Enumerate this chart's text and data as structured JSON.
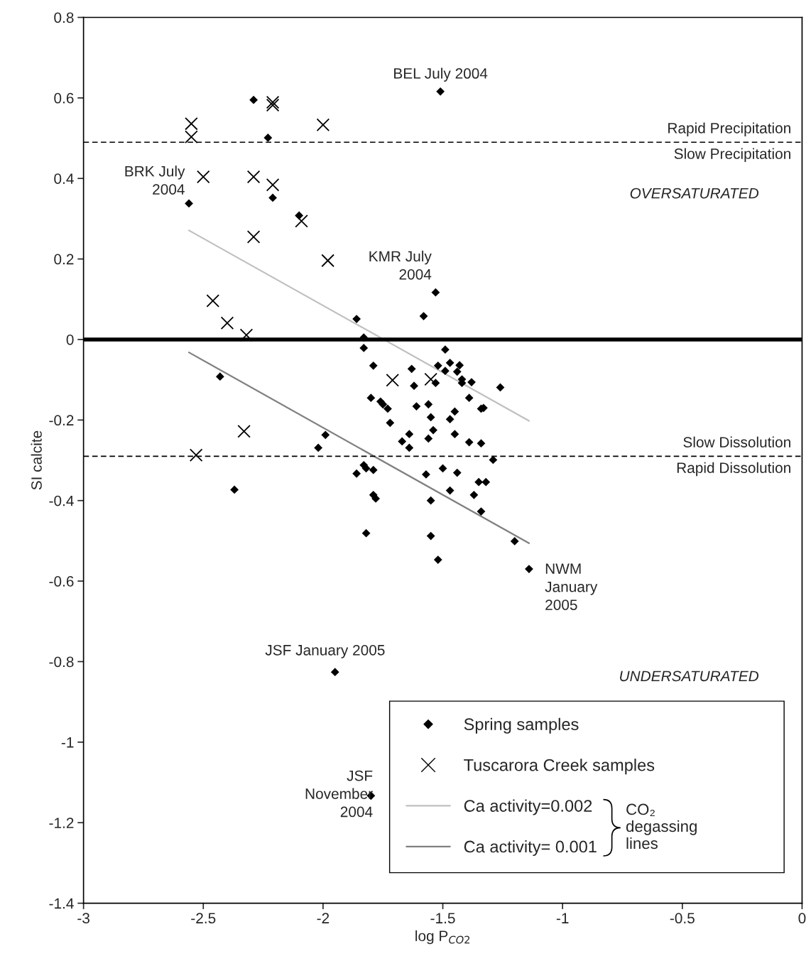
{
  "chart_data": {
    "type": "scatter",
    "xlabel": "log P$_{CO2}$",
    "ylabel": "SI calcite",
    "xlim": [
      -3,
      0
    ],
    "ylim": [
      -1.4,
      0.8
    ],
    "xticks": [
      -3,
      -2.5,
      -2,
      -1.5,
      -1,
      -0.5,
      0
    ],
    "yticks": [
      -1.4,
      -1.2,
      -1,
      -0.8,
      -0.6,
      -0.4,
      -0.2,
      0,
      0.2,
      0.4,
      0.6,
      0.8
    ],
    "grid": false,
    "legend": "bottom right",
    "legend_title": "CO₂\ndegassing\nlines",
    "series": [
      {
        "name": "Spring samples",
        "marker": "diamond",
        "color": "#000000",
        "x": [
          -1.51,
          -2.29,
          -2.23,
          -2.56,
          -2.21,
          -2.1,
          -1.53,
          -2.43,
          -2.37,
          -1.95,
          -1.8,
          -1.14,
          -1.86,
          -1.58,
          -1.83,
          -1.83,
          -1.49,
          -1.79,
          -1.63,
          -1.52,
          -1.47,
          -1.43,
          -1.49,
          -1.44,
          -1.62,
          -1.53,
          -1.42,
          -1.42,
          -1.38,
          -1.26,
          -1.8,
          -1.76,
          -1.75,
          -1.73,
          -1.61,
          -1.56,
          -1.39,
          -1.45,
          -1.55,
          -1.47,
          -1.34,
          -1.33,
          -1.72,
          -1.99,
          -1.64,
          -1.54,
          -1.56,
          -1.67,
          -2.02,
          -1.64,
          -1.45,
          -1.39,
          -1.34,
          -1.29,
          -1.83,
          -1.82,
          -1.86,
          -1.79,
          -1.57,
          -1.5,
          -1.44,
          -1.35,
          -1.32,
          -1.47,
          -1.37,
          -1.79,
          -1.78,
          -1.55,
          -1.34,
          -1.82,
          -1.55,
          -1.2,
          -1.52
        ],
        "values": [
          0.616,
          0.595,
          0.501,
          0.338,
          0.352,
          0.308,
          0.117,
          -0.092,
          -0.373,
          -0.826,
          -1.133,
          -0.57,
          0.051,
          0.058,
          0.005,
          -0.021,
          -0.025,
          -0.065,
          -0.073,
          -0.065,
          -0.058,
          -0.064,
          -0.078,
          -0.08,
          -0.115,
          -0.108,
          -0.099,
          -0.108,
          -0.106,
          -0.119,
          -0.145,
          -0.154,
          -0.161,
          -0.172,
          -0.166,
          -0.161,
          -0.145,
          -0.179,
          -0.193,
          -0.198,
          -0.172,
          -0.17,
          -0.207,
          -0.237,
          -0.235,
          -0.225,
          -0.246,
          -0.253,
          -0.269,
          -0.269,
          -0.235,
          -0.255,
          -0.258,
          -0.299,
          -0.312,
          -0.32,
          -0.333,
          -0.324,
          -0.335,
          -0.32,
          -0.331,
          -0.354,
          -0.354,
          -0.375,
          -0.386,
          -0.386,
          -0.395,
          -0.4,
          -0.427,
          -0.481,
          -0.488,
          -0.501,
          -0.547
        ]
      },
      {
        "name": "Tuscarora Creek samples",
        "marker": "cross",
        "color": "#000000",
        "x": [
          -2.55,
          -2.55,
          -2.21,
          -2.21,
          -2.0,
          -2.5,
          -2.29,
          -2.21,
          -2.09,
          -2.29,
          -1.98,
          -2.46,
          -2.4,
          -2.32,
          -1.71,
          -1.55,
          -2.33,
          -2.53
        ],
        "values": [
          0.536,
          0.503,
          0.589,
          0.582,
          0.533,
          0.404,
          0.404,
          0.384,
          0.294,
          0.255,
          0.196,
          0.096,
          0.041,
          0.011,
          -0.101,
          -0.099,
          -0.228,
          -0.287
        ]
      },
      {
        "name": "Ca activity=0.002",
        "type": "line",
        "marker": "none",
        "line_style": "solid",
        "color": "#c0c0c0",
        "x": [
          -2.56,
          -1.14
        ],
        "values": [
          0.271,
          -0.202
        ]
      },
      {
        "name": "Ca activity= 0.001",
        "type": "line",
        "marker": "none",
        "line_style": "solid",
        "color": "#808080",
        "x": [
          -2.56,
          -1.14
        ],
        "values": [
          -0.032,
          -0.506
        ]
      }
    ],
    "ref_lines": [
      {
        "axis": "y",
        "value": 0,
        "line_style": "solid",
        "color": "#000000"
      },
      {
        "axis": "y",
        "value": 0.49,
        "line_style": "dashed",
        "color": "#000000",
        "label": "Rapid Precipitation"
      },
      {
        "axis": "y",
        "value": -0.29,
        "line_style": "dashed",
        "color": "#000000",
        "label": "Slow Dissolution"
      }
    ],
    "annotations": [
      {
        "text": "BEL July 2004",
        "x": -1.51,
        "y": 0.616
      },
      {
        "text": "BRK July\n2004",
        "x": -2.56,
        "y": 0.338
      },
      {
        "text": "KMR July\n2004",
        "x": -1.53,
        "y": 0.117
      },
      {
        "text": "NWM\nJanuary\n2005",
        "x": -1.14,
        "y": -0.57
      },
      {
        "text": "JSF January 2005",
        "x": -1.95,
        "y": -0.826
      },
      {
        "text": "JSF\nNovember\n2004",
        "x": -1.8,
        "y": -1.133
      },
      {
        "text": "Slow Precipitation",
        "y": 0.49
      },
      {
        "text": "Rapid Dissolution",
        "y": -0.29
      },
      "OVERSATURATED",
      "UNDERSATURATED"
    ]
  }
}
